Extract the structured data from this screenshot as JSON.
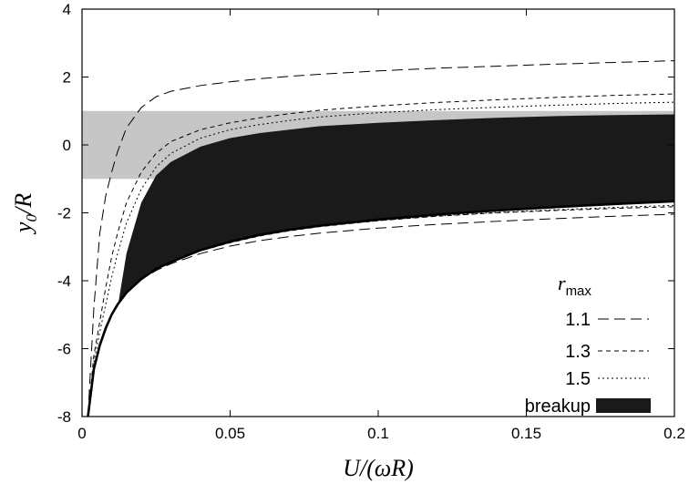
{
  "chart_data": {
    "type": "line",
    "title": "",
    "xlabel": "U/(ωR)",
    "ylabel": "y0/R",
    "xlim": [
      0,
      0.2
    ],
    "ylim": [
      -8,
      4
    ],
    "x_ticks": [
      "0",
      "0.05",
      "0.1",
      "0.15",
      "0.2"
    ],
    "y_ticks": [
      "-8",
      "-6",
      "-4",
      "-2",
      "0",
      "2",
      "4"
    ],
    "grid": false,
    "legend": {
      "placement": "bottom-right",
      "title_main": "r",
      "title_sub": "max",
      "entries": [
        "1.1",
        "1.3",
        "1.5",
        "breakup"
      ]
    },
    "shaded_band": {
      "y_range": [
        -1,
        1
      ],
      "color": "#c6c6c6"
    },
    "x": [
      0.002,
      0.004,
      0.006,
      0.008,
      0.01,
      0.012,
      0.015,
      0.02,
      0.025,
      0.03,
      0.04,
      0.05,
      0.06,
      0.07,
      0.08,
      0.1,
      0.12,
      0.14,
      0.16,
      0.18,
      0.2
    ],
    "lower_boundary": [
      -8.0,
      -6.6,
      -5.9,
      -5.4,
      -5.0,
      -4.7,
      -4.35,
      -3.95,
      -3.65,
      -3.45,
      -3.1,
      -2.85,
      -2.65,
      -2.5,
      -2.38,
      -2.2,
      -2.05,
      -1.93,
      -1.83,
      -1.74,
      -1.66
    ],
    "breakup_region": {
      "x_start": 0.012,
      "upper": [
        null,
        null,
        null,
        null,
        null,
        -4.8,
        -3.2,
        -1.7,
        -0.9,
        -0.5,
        -0.05,
        0.2,
        0.35,
        0.45,
        0.55,
        0.65,
        0.73,
        0.8,
        0.85,
        0.88,
        0.9
      ]
    },
    "series": [
      {
        "name": "1.1",
        "style": "dashed-long",
        "upper": [
          -8.0,
          -4.8,
          -2.6,
          -1.5,
          -0.8,
          -0.2,
          0.5,
          1.1,
          1.42,
          1.58,
          1.75,
          1.86,
          1.95,
          2.02,
          2.08,
          2.18,
          2.26,
          2.32,
          2.38,
          2.43,
          2.48
        ],
        "lower": [
          -8.0,
          -6.6,
          -5.9,
          -5.4,
          -5.0,
          -4.7,
          -4.35,
          -3.95,
          -3.7,
          -3.5,
          -3.2,
          -2.98,
          -2.82,
          -2.7,
          -2.6,
          -2.45,
          -2.34,
          -2.25,
          -2.17,
          -2.1,
          -2.04
        ]
      },
      {
        "name": "1.3",
        "style": "dashed-short",
        "upper": [
          -8.0,
          -6.2,
          -5.2,
          -4.2,
          -3.3,
          -2.6,
          -1.7,
          -0.8,
          -0.25,
          0.1,
          0.45,
          0.65,
          0.8,
          0.92,
          1.02,
          1.15,
          1.25,
          1.33,
          1.4,
          1.46,
          1.5
        ],
        "lower": [
          -8.0,
          -6.6,
          -5.9,
          -5.4,
          -5.0,
          -4.7,
          -4.35,
          -3.95,
          -3.66,
          -3.46,
          -3.12,
          -2.88,
          -2.68,
          -2.53,
          -2.41,
          -2.23,
          -2.1,
          -2.0,
          -1.93,
          -1.87,
          -1.82
        ]
      },
      {
        "name": "1.5",
        "style": "dotted",
        "upper": [
          -8.0,
          -6.4,
          -5.5,
          -4.7,
          -3.9,
          -3.2,
          -2.3,
          -1.3,
          -0.65,
          -0.25,
          0.2,
          0.45,
          0.6,
          0.72,
          0.82,
          0.95,
          1.04,
          1.11,
          1.17,
          1.22,
          1.26
        ],
        "lower": [
          -8.0,
          -6.6,
          -5.9,
          -5.4,
          -5.0,
          -4.7,
          -4.35,
          -3.95,
          -3.65,
          -3.45,
          -3.1,
          -2.86,
          -2.66,
          -2.52,
          -2.4,
          -2.23,
          -2.09,
          -1.99,
          -1.91,
          -1.84,
          -1.78
        ]
      }
    ]
  }
}
